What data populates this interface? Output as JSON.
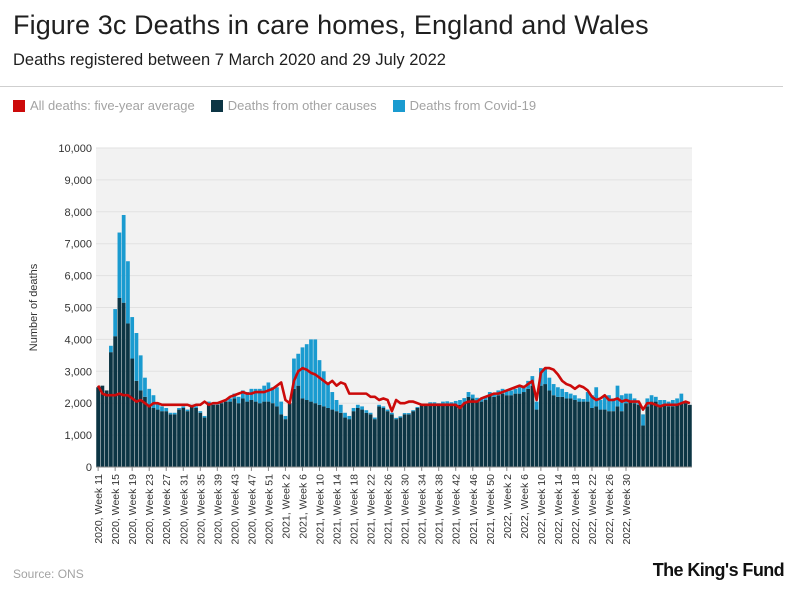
{
  "header": {
    "title": "Figure 3c Deaths in care homes, England and Wales",
    "subtitle": "Deaths registered between 7 March 2020 and 29 July 2022"
  },
  "footer": {
    "source": "Source: ONS",
    "logo": "The King's Fund"
  },
  "colors": {
    "average": "#cc0a0a",
    "other": "#0c3544",
    "covid": "#1a9bd0",
    "grid": "#e1e1e1",
    "plot_bg": "#f2f2f2"
  },
  "chart_data": {
    "type": "bar",
    "stacked": true,
    "title": "Figure 3c Deaths in care homes, England and Wales",
    "subtitle": "Deaths registered between 7 March 2020 and 29 July 2022",
    "xlabel": "",
    "ylabel": "Number of deaths",
    "ylim": [
      0,
      10000
    ],
    "yticks": [
      0,
      1000,
      2000,
      3000,
      4000,
      5000,
      6000,
      7000,
      8000,
      9000,
      10000
    ],
    "ytick_labels": [
      "0",
      "1,000",
      "2,000",
      "3,000",
      "4,000",
      "5,000",
      "6,000",
      "7,000",
      "8,000",
      "9,000",
      "10,000"
    ],
    "grid": true,
    "legend_position": "top-left",
    "tick_labels": [
      "2020, Week 11",
      "2020, Week 15",
      "2020, Week 19",
      "2020, Week 23",
      "2020, Week 27",
      "2020, Week 31",
      "2020, Week 35",
      "2020, Week 39",
      "2020, Week 43",
      "2020, Week 47",
      "2020, Week 51",
      "2021, Week 2",
      "2021, Week 6",
      "2021, Week 10",
      "2021, Week 14",
      "2021, Week 18",
      "2021, Week 22",
      "2021, Week 26",
      "2021, Week 30",
      "2021, Week 34",
      "2021, Week 38",
      "2021, Week 42",
      "2021, Week 46",
      "2021, Week 50",
      "2022, Week 2",
      "2022, Week 6",
      "2022, Week 10",
      "2022, Week 14",
      "2022, Week 18",
      "2022, Week 22",
      "2022, Week 26",
      "2022, Week 30"
    ],
    "series": [
      {
        "name": "Deaths from other causes",
        "values": [
          2500,
          2550,
          2400,
          3600,
          4100,
          5300,
          5150,
          4500,
          3400,
          2700,
          2400,
          2200,
          1950,
          1850,
          1800,
          1750,
          1750,
          1650,
          1650,
          1800,
          1850,
          1750,
          1900,
          1850,
          1700,
          1550,
          2000,
          1950,
          1950,
          2000,
          2050,
          2050,
          2150,
          2000,
          2150,
          2050,
          2100,
          2050,
          2000,
          2050,
          2050,
          2000,
          1900,
          1650,
          1500,
          2000,
          2450,
          2550,
          2150,
          2100,
          2050,
          2000,
          1950,
          1900,
          1850,
          1800,
          1750,
          1700,
          1550,
          1500,
          1750,
          1850,
          1800,
          1700,
          1650,
          1500,
          1900,
          1850,
          1750,
          1650,
          1500,
          1550,
          1650,
          1650,
          1750,
          1850,
          1950,
          1950,
          2000,
          2000,
          1950,
          2000,
          2000,
          1950,
          1950,
          1950,
          2000,
          2200,
          2150,
          2050,
          2050,
          2100,
          2250,
          2200,
          2250,
          2300,
          2250,
          2250,
          2300,
          2300,
          2350,
          2450,
          2550,
          1800,
          2550,
          2600,
          2400,
          2250,
          2200,
          2200,
          2150,
          2150,
          2100,
          2050,
          2050,
          2050,
          1850,
          1900,
          1800,
          1800,
          1750,
          1750,
          1900,
          1750,
          2000,
          2050,
          2000,
          1950,
          1300,
          1900,
          2050,
          2050,
          1950,
          1950,
          1900,
          1900,
          1950,
          2000,
          2000,
          1950
        ]
      },
      {
        "name": "Deaths from Covid-19",
        "values": [
          0,
          0,
          0,
          200,
          850,
          2050,
          2750,
          1950,
          1300,
          1500,
          1100,
          600,
          500,
          400,
          200,
          150,
          100,
          50,
          50,
          50,
          50,
          50,
          50,
          50,
          50,
          50,
          50,
          50,
          50,
          50,
          50,
          100,
          150,
          200,
          250,
          300,
          350,
          400,
          450,
          500,
          600,
          500,
          600,
          400,
          100,
          0,
          950,
          1000,
          1600,
          1750,
          1950,
          2000,
          1400,
          1100,
          800,
          550,
          350,
          250,
          150,
          100,
          100,
          100,
          100,
          80,
          50,
          50,
          50,
          50,
          50,
          50,
          40,
          40,
          40,
          40,
          30,
          30,
          30,
          30,
          30,
          30,
          50,
          50,
          60,
          80,
          120,
          150,
          160,
          150,
          120,
          120,
          100,
          120,
          100,
          100,
          150,
          150,
          150,
          150,
          150,
          200,
          200,
          250,
          300,
          250,
          550,
          500,
          400,
          350,
          300,
          250,
          200,
          150,
          150,
          100,
          80,
          300,
          400,
          600,
          300,
          400,
          500,
          400,
          650,
          500,
          300,
          250,
          150,
          50,
          350,
          250,
          200,
          150,
          150,
          150,
          150,
          200,
          200,
          300
        ]
      },
      {
        "name": "All deaths: five-year average",
        "values": [
          2550,
          2300,
          2250,
          2250,
          2250,
          2300,
          2250,
          2250,
          2150,
          2050,
          2100,
          2000,
          1900,
          2000,
          2000,
          1950,
          1950,
          1950,
          1950,
          1950,
          1950,
          1950,
          1900,
          1950,
          1950,
          2050,
          1950,
          2000,
          2000,
          2050,
          2100,
          2200,
          2250,
          2300,
          2350,
          2300,
          2300,
          2350,
          2350,
          2350,
          2400,
          2450,
          2550,
          2650,
          2100,
          2000,
          2700,
          3000,
          3100,
          3050,
          2950,
          2900,
          2800,
          2700,
          2600,
          2700,
          2550,
          2650,
          2600,
          2300,
          2300,
          2300,
          2300,
          2300,
          2200,
          2200,
          2100,
          2150,
          2100,
          1750,
          2100,
          2000,
          2000,
          2050,
          2050,
          2000,
          1950,
          1950,
          1950,
          1950,
          1950,
          1950,
          1950,
          1950,
          1950,
          1850,
          2000,
          2050,
          2050,
          2050,
          2150,
          2200,
          2250,
          2300,
          2300,
          2350,
          2400,
          2450,
          2500,
          2550,
          2500,
          2600,
          2700,
          2100,
          2950,
          3100,
          3100,
          3050,
          2900,
          2700,
          2600,
          2550,
          2450,
          2550,
          2500,
          2400,
          2200,
          2100,
          2150,
          2250,
          2100,
          2100,
          2150,
          2050,
          2100,
          2050,
          2050,
          2050,
          1800,
          2000,
          2000,
          1950,
          1900,
          1950,
          1950,
          1950,
          1950,
          2000,
          2050,
          2000
        ]
      }
    ]
  }
}
